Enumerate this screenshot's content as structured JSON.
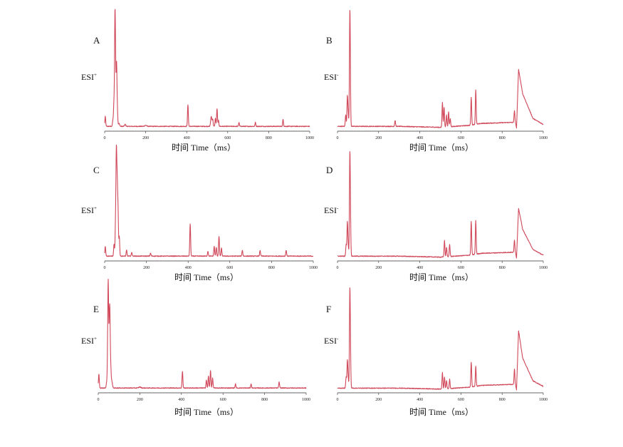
{
  "figure": {
    "line_color": "#d0485a",
    "x_axis_title": "时间  Time（ms）"
  },
  "chart_data": [
    {
      "type": "line",
      "panel": "A",
      "ion_mode_label": "ESI",
      "ion_mode_sup": "+",
      "xlim": [
        0,
        1000
      ],
      "xticks": [
        0,
        200,
        400,
        600,
        800,
        1000
      ],
      "xlabel": "时间  Time（ms）",
      "baseline_trend": [
        [
          0,
          0.02
        ],
        [
          1000,
          0.02
        ]
      ],
      "peaks": [
        [
          3,
          0.1,
          2
        ],
        [
          40,
          0.06,
          2
        ],
        [
          45,
          0.22,
          2
        ],
        [
          50,
          1.0,
          2
        ],
        [
          53,
          0.5,
          2
        ],
        [
          58,
          0.62,
          2
        ],
        [
          62,
          0.15,
          2
        ],
        [
          70,
          0.03,
          3
        ],
        [
          100,
          0.02,
          3
        ],
        [
          200,
          0.01,
          5
        ],
        [
          406,
          0.22,
          2
        ],
        [
          520,
          0.1,
          3
        ],
        [
          527,
          0.07,
          2
        ],
        [
          540,
          0.08,
          2
        ],
        [
          548,
          0.18,
          2
        ],
        [
          555,
          0.06,
          2
        ],
        [
          655,
          0.04,
          2
        ],
        [
          735,
          0.04,
          2
        ],
        [
          870,
          0.07,
          2
        ]
      ],
      "series": [
        {
          "values": []
        }
      ]
    },
    {
      "type": "line",
      "panel": "B",
      "ion_mode_label": "ESI",
      "ion_mode_sup": "-",
      "xlim": [
        0,
        1000
      ],
      "xticks": [
        0,
        200,
        400,
        600,
        800,
        1000
      ],
      "xlabel": "时间  Time（ms）",
      "baseline_trend": [
        [
          0,
          0.02
        ],
        [
          300,
          0.02
        ],
        [
          500,
          0.01
        ],
        [
          640,
          0.03
        ],
        [
          700,
          0.05
        ],
        [
          840,
          0.06
        ],
        [
          865,
          0.06
        ],
        [
          870,
          0.0
        ],
        [
          880,
          0.6
        ],
        [
          900,
          0.35
        ],
        [
          950,
          0.1
        ],
        [
          1000,
          0.04
        ]
      ],
      "peaks": [
        [
          40,
          0.12,
          2
        ],
        [
          48,
          0.3,
          2
        ],
        [
          52,
          0.12,
          2
        ],
        [
          60,
          1.0,
          2
        ],
        [
          62,
          0.3,
          2
        ],
        [
          280,
          0.06,
          2
        ],
        [
          510,
          0.25,
          2
        ],
        [
          518,
          0.2,
          2
        ],
        [
          530,
          0.12,
          2
        ],
        [
          540,
          0.15,
          2
        ],
        [
          548,
          0.08,
          2
        ],
        [
          650,
          0.28,
          2
        ],
        [
          672,
          0.35,
          2
        ],
        [
          860,
          0.12,
          2
        ]
      ],
      "series": [
        {
          "values": []
        }
      ]
    },
    {
      "type": "line",
      "panel": "C",
      "ion_mode_label": "ESI",
      "ion_mode_sup": "+",
      "xlim": [
        0,
        1000
      ],
      "xticks": [
        0,
        200,
        400,
        600,
        800,
        1000
      ],
      "xlabel": "时间  Time（ms）",
      "baseline_trend": [
        [
          0,
          0.02
        ],
        [
          1000,
          0.02
        ]
      ],
      "peaks": [
        [
          3,
          0.1,
          2
        ],
        [
          45,
          0.12,
          2
        ],
        [
          52,
          0.3,
          2
        ],
        [
          56,
          1.0,
          2
        ],
        [
          60,
          0.65,
          2
        ],
        [
          64,
          0.45,
          2
        ],
        [
          70,
          0.2,
          2
        ],
        [
          105,
          0.06,
          2
        ],
        [
          130,
          0.04,
          2
        ],
        [
          220,
          0.03,
          2
        ],
        [
          410,
          0.33,
          2
        ],
        [
          495,
          0.05,
          2
        ],
        [
          525,
          0.1,
          2
        ],
        [
          535,
          0.09,
          2
        ],
        [
          548,
          0.2,
          2
        ],
        [
          560,
          0.08,
          2
        ],
        [
          660,
          0.06,
          2
        ],
        [
          745,
          0.06,
          2
        ],
        [
          870,
          0.06,
          2
        ]
      ],
      "series": [
        {
          "values": []
        }
      ]
    },
    {
      "type": "line",
      "panel": "D",
      "ion_mode_label": "ESI",
      "ion_mode_sup": "-",
      "xlim": [
        0,
        1000
      ],
      "xticks": [
        0,
        200,
        400,
        600,
        800,
        1000
      ],
      "xlabel": "时间  Time（ms）",
      "baseline_trend": [
        [
          0,
          0.02
        ],
        [
          300,
          0.02
        ],
        [
          500,
          0.01
        ],
        [
          640,
          0.03
        ],
        [
          700,
          0.05
        ],
        [
          840,
          0.06
        ],
        [
          865,
          0.06
        ],
        [
          870,
          0.0
        ],
        [
          880,
          0.52
        ],
        [
          900,
          0.3
        ],
        [
          950,
          0.09
        ],
        [
          1000,
          0.03
        ]
      ],
      "peaks": [
        [
          42,
          0.12,
          2
        ],
        [
          48,
          0.35,
          2
        ],
        [
          52,
          0.1,
          2
        ],
        [
          60,
          1.0,
          2
        ],
        [
          63,
          0.3,
          2
        ],
        [
          520,
          0.17,
          2
        ],
        [
          530,
          0.1,
          2
        ],
        [
          545,
          0.13,
          2
        ],
        [
          650,
          0.35,
          2
        ],
        [
          672,
          0.35,
          2
        ],
        [
          860,
          0.13,
          2
        ]
      ],
      "series": [
        {
          "values": []
        }
      ]
    },
    {
      "type": "line",
      "panel": "E",
      "ion_mode_label": "ESI",
      "ion_mode_sup": "+",
      "xlim": [
        0,
        1000
      ],
      "xticks": [
        0,
        200,
        400,
        600,
        800,
        1000
      ],
      "xlabel": "时间  Time（ms）",
      "baseline_trend": [
        [
          0,
          0.02
        ],
        [
          1000,
          0.02
        ]
      ],
      "peaks": [
        [
          3,
          0.14,
          2
        ],
        [
          40,
          0.05,
          2
        ],
        [
          45,
          0.25,
          2
        ],
        [
          48,
          1.0,
          2
        ],
        [
          53,
          0.5,
          2
        ],
        [
          56,
          0.62,
          2
        ],
        [
          60,
          0.18,
          2
        ],
        [
          65,
          0.07,
          3
        ],
        [
          200,
          0.01,
          5
        ],
        [
          405,
          0.17,
          2
        ],
        [
          520,
          0.08,
          2
        ],
        [
          530,
          0.12,
          2
        ],
        [
          540,
          0.18,
          2
        ],
        [
          550,
          0.1,
          2
        ],
        [
          660,
          0.04,
          2
        ],
        [
          735,
          0.04,
          2
        ],
        [
          870,
          0.06,
          2
        ]
      ],
      "series": [
        {
          "values": []
        }
      ]
    },
    {
      "type": "line",
      "panel": "F",
      "ion_mode_label": "ESI",
      "ion_mode_sup": "-",
      "xlim": [
        0,
        1000
      ],
      "xticks": [
        0,
        200,
        400,
        600,
        800,
        1000
      ],
      "xlabel": "时间  Time（ms）",
      "baseline_trend": [
        [
          0,
          0.02
        ],
        [
          300,
          0.02
        ],
        [
          500,
          0.01
        ],
        [
          640,
          0.03
        ],
        [
          700,
          0.05
        ],
        [
          840,
          0.06
        ],
        [
          865,
          0.06
        ],
        [
          870,
          0.0
        ],
        [
          880,
          0.65
        ],
        [
          900,
          0.35
        ],
        [
          950,
          0.1
        ],
        [
          1000,
          0.04
        ]
      ],
      "peaks": [
        [
          42,
          0.12,
          2
        ],
        [
          48,
          0.3,
          2
        ],
        [
          52,
          0.1,
          2
        ],
        [
          60,
          1.0,
          2
        ],
        [
          63,
          0.3,
          2
        ],
        [
          510,
          0.18,
          2
        ],
        [
          520,
          0.13,
          2
        ],
        [
          530,
          0.09,
          2
        ],
        [
          545,
          0.1,
          2
        ],
        [
          650,
          0.27,
          2
        ],
        [
          672,
          0.22,
          2
        ],
        [
          860,
          0.17,
          2
        ]
      ],
      "series": [
        {
          "values": []
        }
      ]
    }
  ]
}
